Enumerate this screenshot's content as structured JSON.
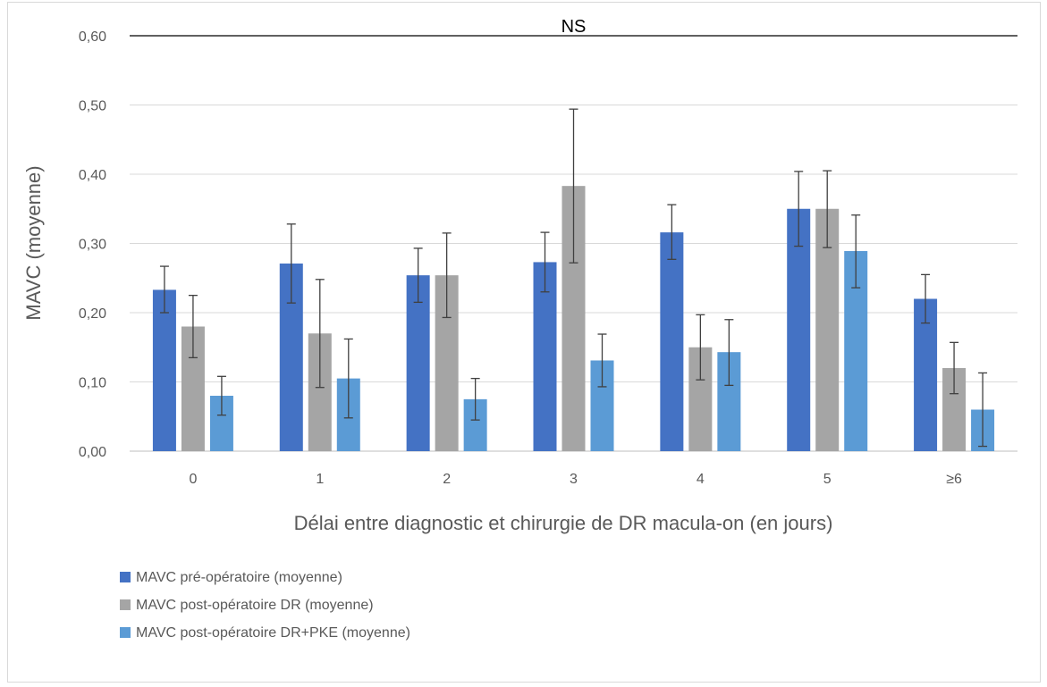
{
  "chart_data": {
    "type": "bar",
    "title": "",
    "xlabel": "Délai entre diagnostic et chirurgie de DR macula-on (en jours)",
    "ylabel": "MAVC (moyenne)",
    "ylim": [
      0,
      0.6
    ],
    "yticks": [
      0,
      0.1,
      0.2,
      0.3,
      0.4,
      0.5,
      0.6
    ],
    "ytick_labels": [
      "0,00",
      "0,10",
      "0,20",
      "0,30",
      "0,40",
      "0,50",
      "0,60"
    ],
    "grid": "horizontal",
    "legend_position": "bottom-left",
    "categories": [
      "0",
      "1",
      "2",
      "3",
      "4",
      "5",
      "≥6"
    ],
    "series": [
      {
        "name": "MAVC pré-opératoire (moyenne)",
        "color": "#4472c4",
        "values": [
          0.233,
          0.271,
          0.254,
          0.273,
          0.316,
          0.35,
          0.22
        ],
        "err_low": [
          0.2,
          0.214,
          0.215,
          0.23,
          0.277,
          0.296,
          0.185
        ],
        "err_high": [
          0.267,
          0.328,
          0.293,
          0.316,
          0.356,
          0.404,
          0.255
        ]
      },
      {
        "name": "MAVC post-opératoire DR (moyenne)",
        "color": "#a5a5a5",
        "values": [
          0.18,
          0.17,
          0.254,
          0.383,
          0.15,
          0.35,
          0.12
        ],
        "err_low": [
          0.135,
          0.092,
          0.193,
          0.272,
          0.103,
          0.294,
          0.083
        ],
        "err_high": [
          0.225,
          0.248,
          0.315,
          0.494,
          0.197,
          0.405,
          0.157
        ]
      },
      {
        "name": "MAVC post-opératoire DR+PKE (moyenne)",
        "color": "#5b9bd5",
        "values": [
          0.08,
          0.105,
          0.075,
          0.131,
          0.143,
          0.289,
          0.06
        ],
        "err_low": [
          0.052,
          0.048,
          0.045,
          0.093,
          0.095,
          0.236,
          0.007
        ],
        "err_high": [
          0.108,
          0.162,
          0.105,
          0.169,
          0.19,
          0.341,
          0.113
        ]
      }
    ],
    "annotations": [
      {
        "text": "NS",
        "y": 0.6
      }
    ]
  }
}
